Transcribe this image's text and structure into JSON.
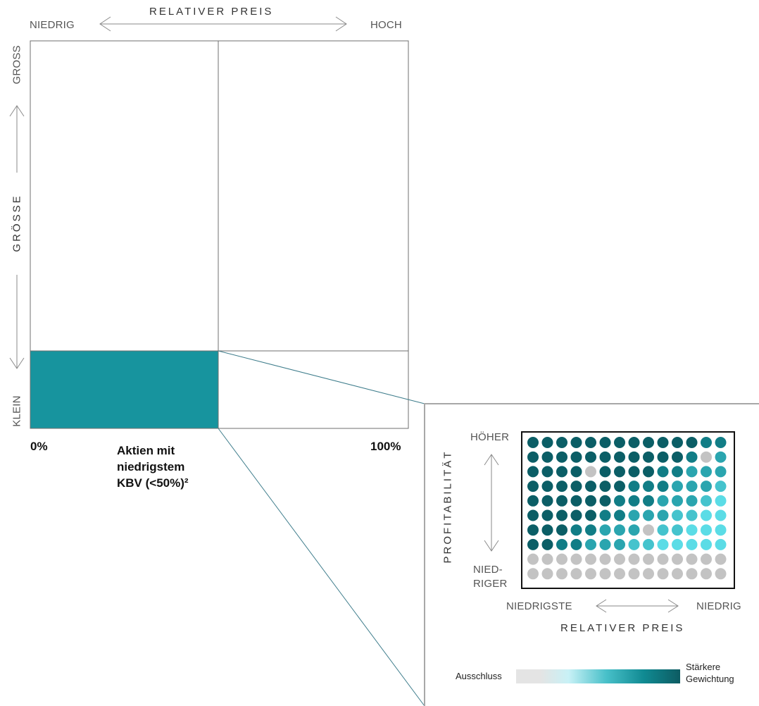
{
  "top_matrix": {
    "x_axis_title": "RELATIVER PREIS",
    "x_low": "NIEDRIG",
    "x_high": "HOCH",
    "y_axis_title": "GRÖSSE",
    "y_high": "GROSS",
    "y_low": "KLEIN",
    "x_start": "0%",
    "x_end": "100%",
    "highlight_label_line1": "Aktien mit",
    "highlight_label_line2": "niedrigstem",
    "highlight_label_line3": "KBV (<50%)²",
    "highlight_color": "#17949e"
  },
  "detail_panel": {
    "y_axis_title": "PROFITABILITÄT",
    "y_high": "HÖHER",
    "y_low_line1": "NIED-",
    "y_low_line2": "RIGER",
    "x_low": "NIEDRIGSTE",
    "x_high": "NIEDRIG",
    "x_axis_title": "RELATIVER PREIS",
    "legend_low": "Ausschluss",
    "legend_high_line1": "Stärkere",
    "legend_high_line2": "Gewichtung",
    "dot_levels": [
      [
        5,
        5,
        5,
        5,
        5,
        5,
        5,
        5,
        5,
        5,
        5,
        5,
        4,
        4
      ],
      [
        5,
        5,
        5,
        5,
        5,
        5,
        5,
        5,
        5,
        5,
        5,
        4,
        0,
        3
      ],
      [
        5,
        5,
        5,
        5,
        0,
        5,
        5,
        5,
        5,
        4,
        4,
        3,
        3,
        3
      ],
      [
        5,
        5,
        5,
        5,
        5,
        5,
        5,
        4,
        4,
        4,
        3,
        3,
        3,
        2
      ],
      [
        5,
        5,
        5,
        5,
        5,
        5,
        4,
        4,
        4,
        3,
        3,
        3,
        2,
        1
      ],
      [
        5,
        5,
        5,
        5,
        5,
        4,
        4,
        3,
        3,
        3,
        2,
        2,
        1,
        1
      ],
      [
        5,
        5,
        5,
        4,
        4,
        3,
        3,
        3,
        0,
        2,
        2,
        1,
        1,
        1
      ],
      [
        5,
        5,
        4,
        4,
        3,
        3,
        3,
        2,
        2,
        1,
        1,
        1,
        1,
        1
      ],
      [
        0,
        0,
        0,
        0,
        0,
        0,
        0,
        0,
        0,
        0,
        0,
        0,
        0,
        0
      ],
      [
        0,
        0,
        0,
        0,
        0,
        0,
        0,
        0,
        0,
        0,
        0,
        0,
        0,
        0
      ]
    ],
    "level_colors": [
      "#c3c3c3",
      "#5bdce6",
      "#45c3cd",
      "#2aa5af",
      "#117d86",
      "#0b5e66"
    ]
  }
}
